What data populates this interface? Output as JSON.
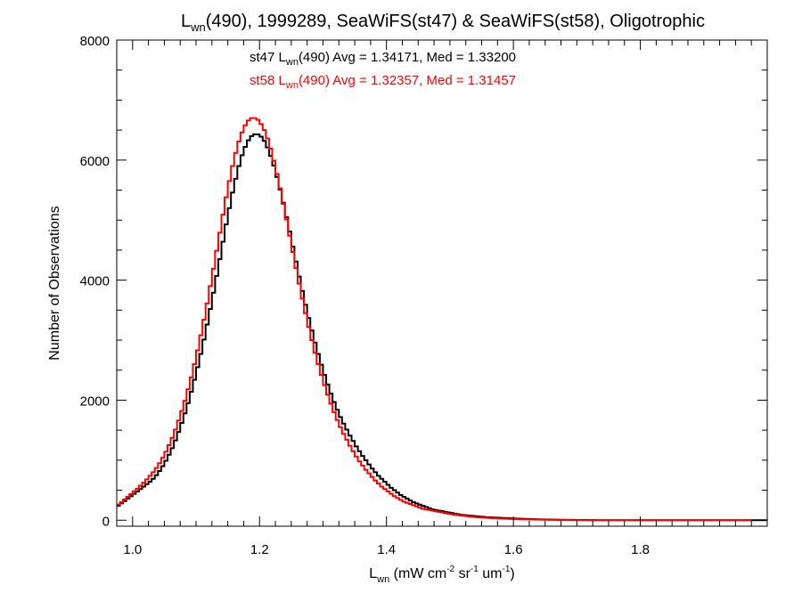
{
  "chart_data": {
    "type": "histogram",
    "title": {
      "main": "L",
      "sub": "wn",
      "rest": "(490), 1999289, SeaWiFS(st47) & SeaWiFS(st58), Oligotrophic"
    },
    "xlabel": {
      "main": "L",
      "sub": "wn",
      "rest": " (mW cm",
      "sup1": "-2",
      "mid1": " sr",
      "sup2": "-1",
      "mid2": " um",
      "sup3": "-1",
      "end": ")"
    },
    "ylabel": "Number of Observations",
    "xlim": [
      0.975,
      2.0
    ],
    "ylim": [
      -100,
      8000
    ],
    "x_ticks": [
      1.0,
      1.2,
      1.4,
      1.6,
      1.8
    ],
    "x_tick_labels": [
      "1.0",
      "1.2",
      "1.4",
      "1.6",
      "1.8"
    ],
    "y_ticks": [
      0,
      2000,
      4000,
      6000,
      8000
    ],
    "y_tick_labels": [
      "0",
      "2000",
      "4000",
      "6000",
      "8000"
    ],
    "bin_width": 0.005,
    "grid": false,
    "legend_position": "top-center",
    "series": [
      {
        "name": "st47",
        "color": "#000000",
        "label": {
          "pre": "st47 L",
          "sub": "wn",
          "post": "(490) Avg = 1.34171, Med = 1.33200"
        },
        "mean": 1.34171,
        "median": 1.332,
        "x_start": 0.975,
        "values": [
          240,
          280,
          320,
          360,
          400,
          440,
          480,
          520,
          560,
          600,
          640,
          690,
          750,
          820,
          900,
          990,
          1090,
          1200,
          1330,
          1470,
          1620,
          1780,
          1950,
          2140,
          2340,
          2550,
          2770,
          3010,
          3260,
          3520,
          3790,
          4070,
          4350,
          4640,
          4930,
          5200,
          5460,
          5690,
          5900,
          6080,
          6220,
          6330,
          6400,
          6430,
          6430,
          6390,
          6320,
          6210,
          6070,
          5910,
          5720,
          5510,
          5290,
          5050,
          4810,
          4560,
          4310,
          4060,
          3820,
          3590,
          3370,
          3160,
          2960,
          2770,
          2590,
          2420,
          2260,
          2110,
          1970,
          1840,
          1720,
          1610,
          1510,
          1410,
          1320,
          1230,
          1150,
          1070,
          1000,
          930,
          860,
          800,
          740,
          690,
          640,
          590,
          540,
          500,
          460,
          420,
          390,
          360,
          330,
          300,
          280,
          260,
          240,
          220,
          200,
          180,
          170,
          160,
          150,
          140,
          130,
          120,
          110,
          100,
          90,
          85,
          80,
          75,
          70,
          65,
          60,
          55,
          50,
          48,
          45,
          42,
          40,
          38,
          35,
          33,
          30,
          28,
          26,
          24,
          22,
          20,
          18,
          16,
          15,
          14,
          13,
          12,
          11,
          10,
          9,
          8,
          7,
          6,
          5,
          5,
          4,
          4,
          3,
          3,
          2,
          2,
          2,
          1,
          1,
          1,
          1,
          1,
          0,
          0,
          0,
          0,
          0,
          0,
          0,
          0,
          0,
          0,
          0,
          0,
          0,
          0,
          0,
          0,
          0,
          0,
          0,
          0,
          0,
          0,
          0,
          0,
          0,
          0,
          0,
          0,
          0,
          0,
          0,
          0,
          0,
          0,
          0,
          0,
          0,
          0,
          0,
          0,
          0,
          0,
          0,
          0,
          0,
          0,
          0,
          0,
          0
        ]
      },
      {
        "name": "st58",
        "color": "#ff0000",
        "label": {
          "pre": "st58 L",
          "sub": "wn",
          "post": "(490) Avg = 1.32357, Med = 1.31457"
        },
        "mean": 1.32357,
        "median": 1.31457,
        "x_start": 0.975,
        "values": [
          260,
          300,
          345,
          390,
          435,
          480,
          525,
          575,
          625,
          680,
          740,
          800,
          870,
          950,
          1040,
          1140,
          1250,
          1370,
          1510,
          1660,
          1820,
          1990,
          2180,
          2380,
          2600,
          2830,
          3080,
          3340,
          3610,
          3900,
          4190,
          4490,
          4790,
          5090,
          5380,
          5650,
          5900,
          6120,
          6310,
          6460,
          6580,
          6660,
          6700,
          6700,
          6670,
          6600,
          6500,
          6360,
          6190,
          5990,
          5770,
          5530,
          5270,
          5010,
          4740,
          4470,
          4200,
          3940,
          3690,
          3450,
          3220,
          3000,
          2790,
          2600,
          2420,
          2250,
          2090,
          1940,
          1800,
          1670,
          1550,
          1440,
          1340,
          1240,
          1150,
          1060,
          980,
          910,
          840,
          780,
          720,
          660,
          610,
          560,
          520,
          480,
          440,
          400,
          370,
          340,
          310,
          290,
          270,
          250,
          230,
          210,
          190,
          180,
          170,
          160,
          150,
          140,
          130,
          120,
          110,
          100,
          92,
          85,
          78,
          72,
          66,
          60,
          55,
          51,
          47,
          43,
          40,
          37,
          34,
          31,
          28,
          26,
          24,
          22,
          20,
          18,
          16,
          15,
          14,
          13,
          12,
          11,
          10,
          9,
          8,
          7,
          6,
          5,
          5,
          4,
          4,
          3,
          3,
          2,
          2,
          2,
          1,
          1,
          1,
          1,
          1,
          0,
          0,
          0,
          0,
          0,
          0,
          0,
          0,
          0,
          0,
          0,
          0,
          0,
          0,
          0,
          0,
          0,
          0,
          0,
          0,
          0,
          0,
          0,
          0,
          0,
          0,
          0,
          0,
          0,
          0,
          0,
          0,
          0,
          0,
          0,
          0,
          0,
          0,
          0,
          0,
          0,
          0,
          0,
          0,
          0,
          0,
          0,
          0,
          0
        ]
      }
    ]
  }
}
